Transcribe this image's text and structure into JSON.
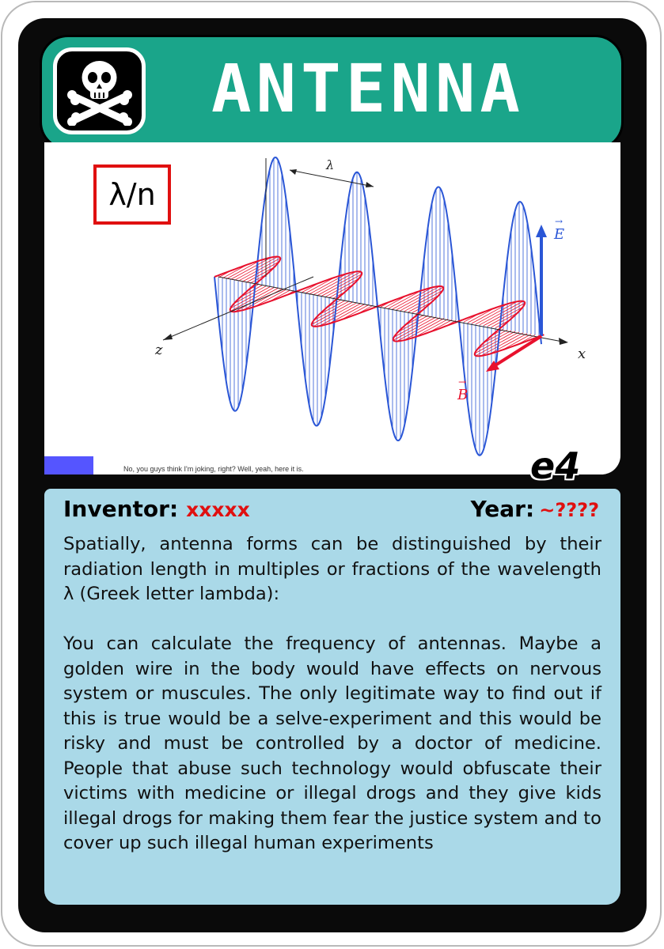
{
  "card": {
    "title": "ANTENNA",
    "icon": "skull-crossbones-icon",
    "badge": "e4"
  },
  "image": {
    "label_box": "λ/n",
    "caption": "No, you guys think I'm joking, right? Well, yeah, here it is.",
    "axis_labels": {
      "lambda": "λ",
      "E": "E",
      "B": "B",
      "x": "x",
      "z": "z"
    }
  },
  "info": {
    "inventor_label": "Inventor:",
    "inventor_value": "xxxxx",
    "year_label": "Year:",
    "year_value": "~????",
    "description": "Spatially, antenna forms can be distinguished by their radiation length in multiples or fractions of the wavelength λ (Greek letter lambda):\n\nYou can calculate the frequency of antennas. Maybe a golden wire in the body would have effects on nervous system or muscules. The only legitimate way to find out if this is true would be a selve-experiment and this would be risky and must be controlled by a doctor of medicine. People that abuse such technology would obfuscate their victims with medicine or illegal drogs and they give kids illegal drogs for making them fear the justice system and to cover up such illegal human experiments"
  },
  "colors": {
    "title_bar": "#1aa58a",
    "info_panel": "#aad9e8",
    "accent_red": "#e01010",
    "wave_blue": "#2a56d6",
    "wave_red": "#e8112d"
  }
}
